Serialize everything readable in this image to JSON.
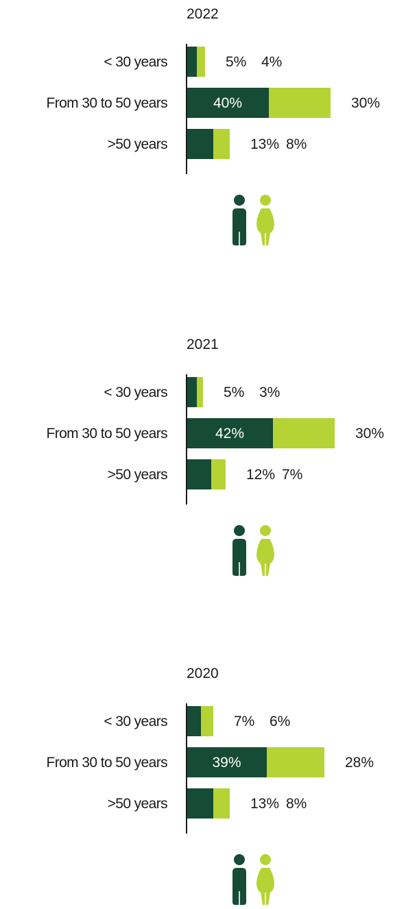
{
  "chart_data": [
    {
      "type": "bar",
      "stacked": true,
      "orientation": "horizontal",
      "title": "2022",
      "categories": [
        "< 30 years",
        "From 30 to 50 years",
        ">50 years"
      ],
      "series": [
        {
          "values": [
            5,
            40,
            13
          ],
          "labels": [
            "5%",
            "40%",
            "13%"
          ]
        },
        {
          "values": [
            4,
            30,
            8
          ],
          "labels": [
            "4%",
            "30%",
            "8%"
          ]
        }
      ],
      "legend": "icons-below"
    },
    {
      "type": "bar",
      "stacked": true,
      "orientation": "horizontal",
      "title": "2021",
      "categories": [
        "< 30 years",
        "From 30 to 50 years",
        ">50 years"
      ],
      "series": [
        {
          "values": [
            5,
            42,
            12
          ],
          "labels": [
            "5%",
            "42%",
            "12%"
          ]
        },
        {
          "values": [
            3,
            30,
            7
          ],
          "labels": [
            "3%",
            "30%",
            "7%"
          ]
        }
      ],
      "legend": "icons-below"
    },
    {
      "type": "bar",
      "stacked": true,
      "orientation": "horizontal",
      "title": "2020",
      "categories": [
        "< 30 years",
        "From 30 to 50 years",
        ">50 years"
      ],
      "series": [
        {
          "values": [
            7,
            39,
            13
          ],
          "labels": [
            "7%",
            "39%",
            "13%"
          ]
        },
        {
          "values": [
            6,
            28,
            8
          ],
          "labels": [
            "6%",
            "28%",
            "8%"
          ]
        }
      ],
      "legend": "icons-below"
    }
  ],
  "colors": {
    "series_1": "#164b36",
    "series_2": "#b5d334",
    "inside_label": "#ffffff",
    "text": "#1a1a1a",
    "axis": "#1a1a1a"
  },
  "legend_icons": [
    "male-person-icon",
    "female-person-icon"
  ]
}
